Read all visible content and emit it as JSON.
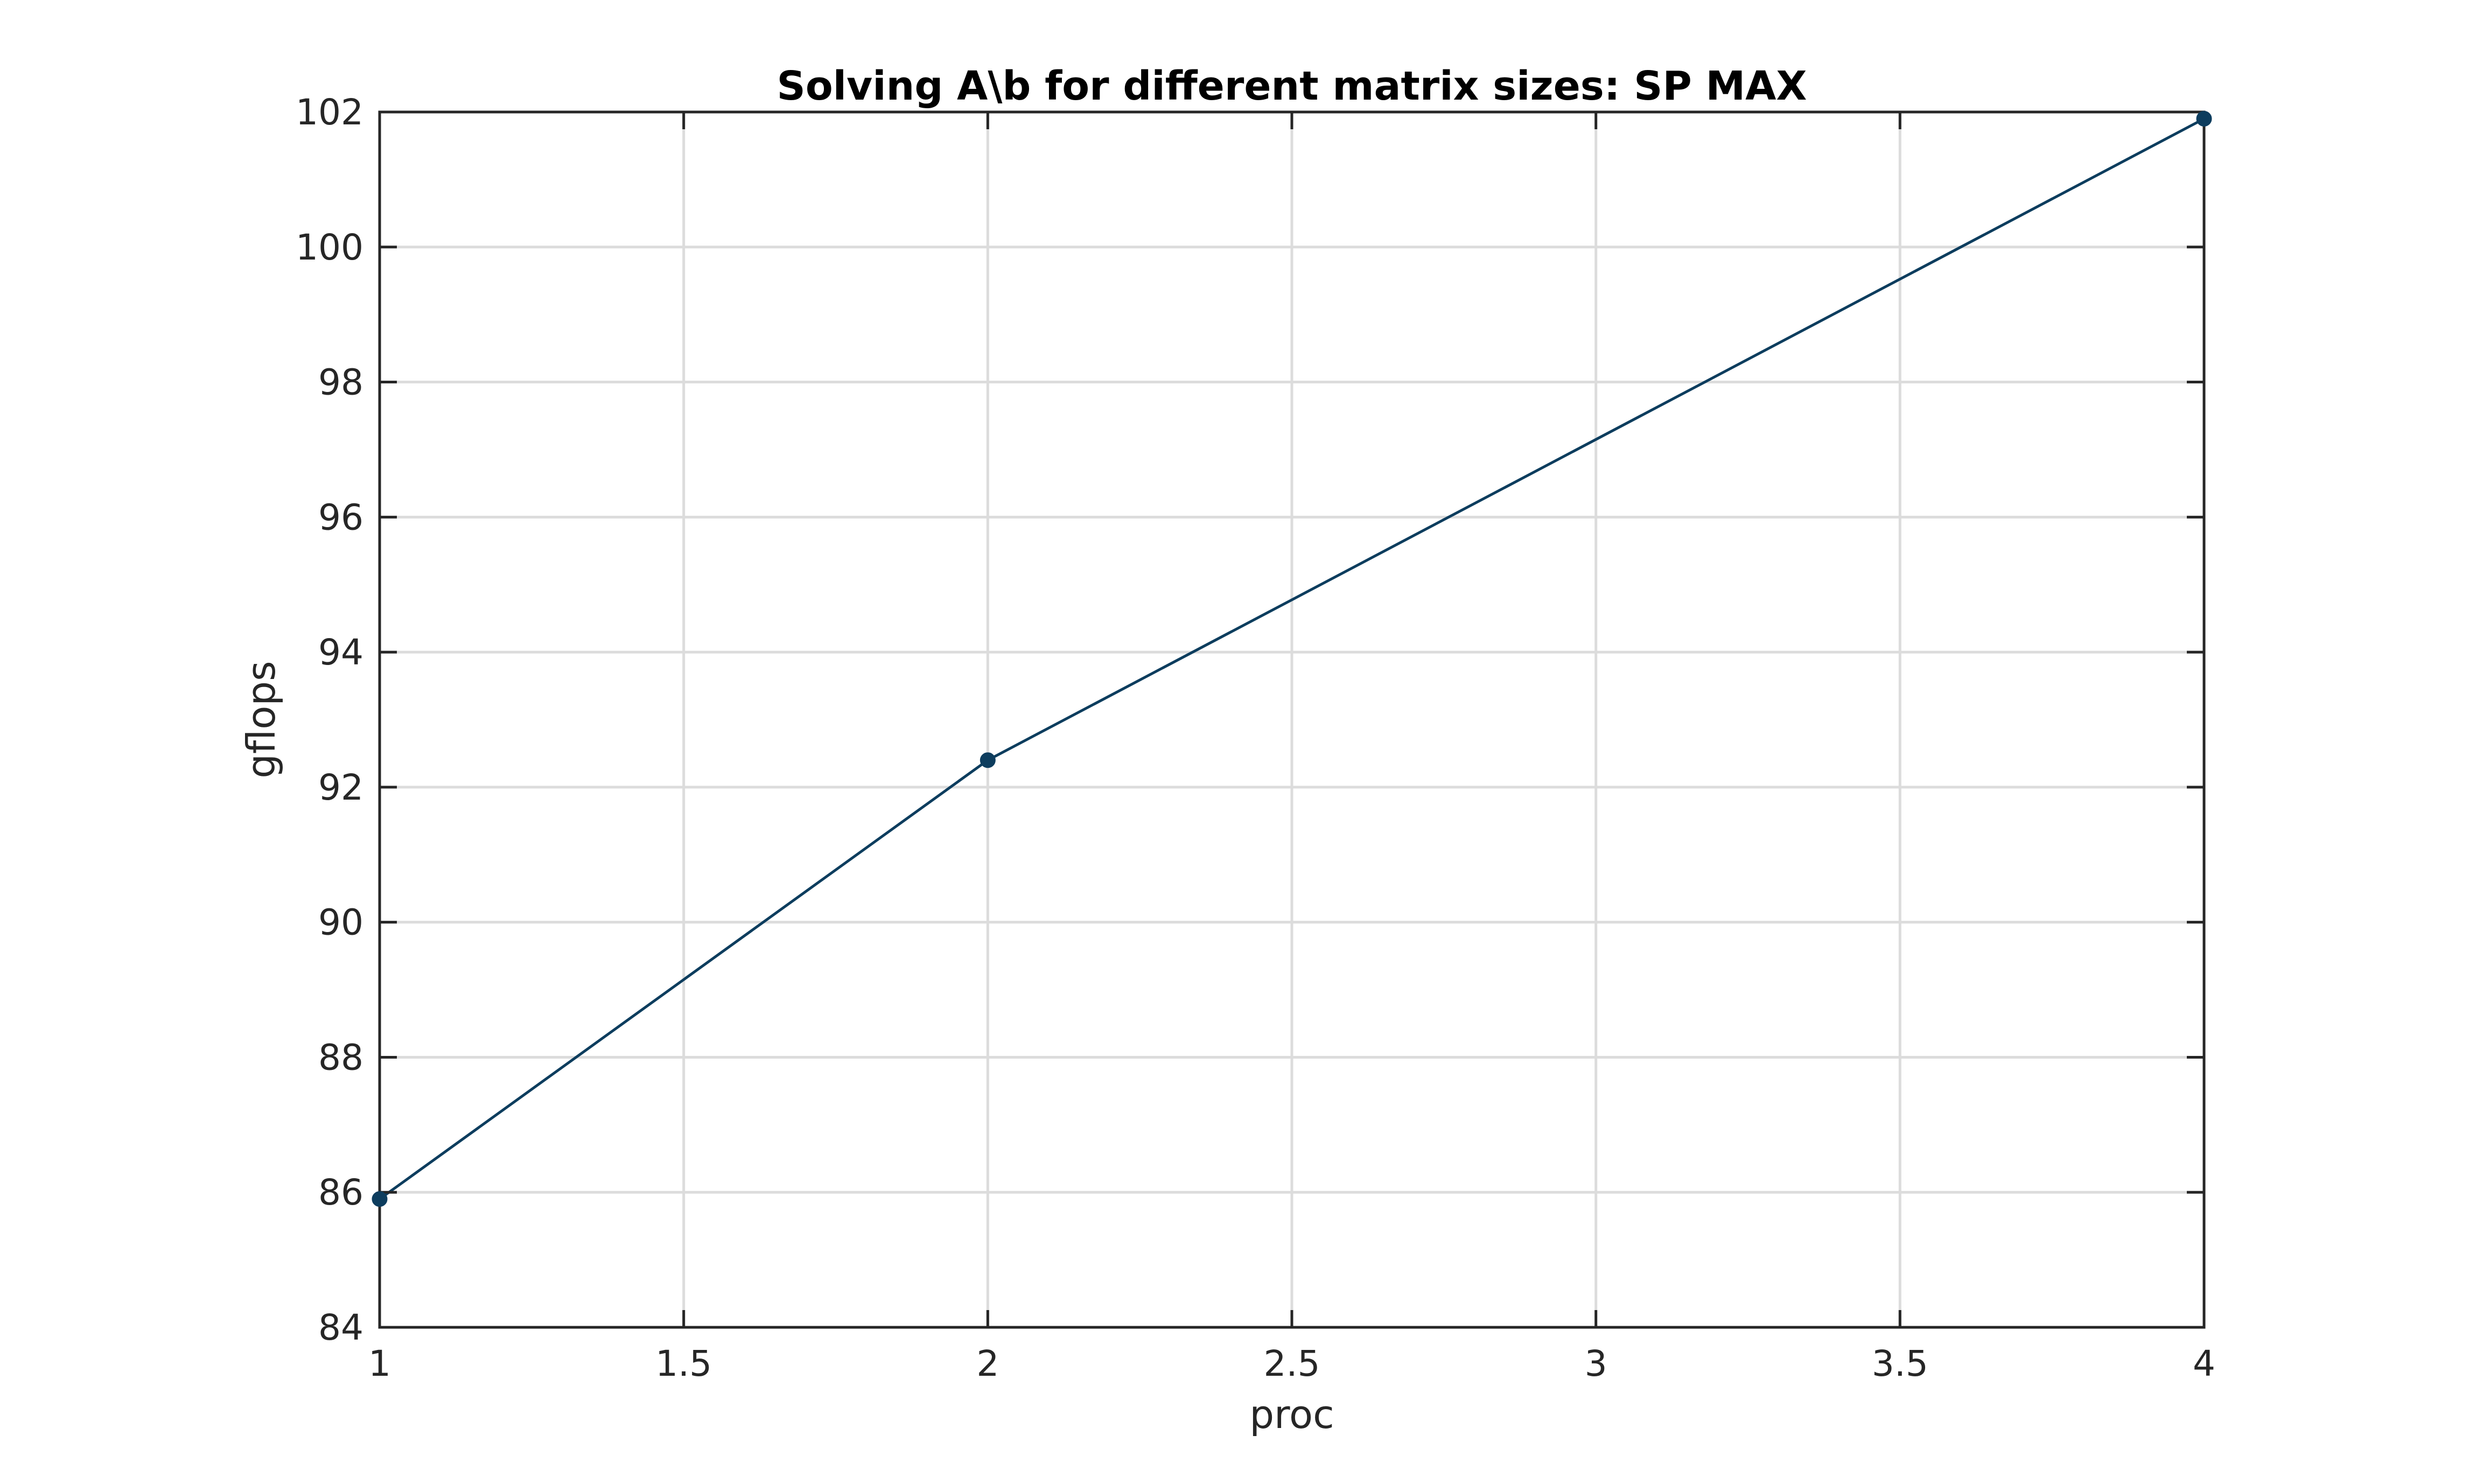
{
  "chart_data": {
    "type": "line",
    "title": "Solving A\\b for different matrix sizes: SP MAX",
    "xlabel": "proc",
    "ylabel": "gflops",
    "xlim": [
      1,
      4
    ],
    "ylim": [
      84,
      102
    ],
    "xticks": [
      1,
      1.5,
      2,
      2.5,
      3,
      3.5,
      4
    ],
    "xtick_labels": [
      "1",
      "1.5",
      "2",
      "2.5",
      "3",
      "3.5",
      "4"
    ],
    "yticks": [
      84,
      86,
      88,
      90,
      92,
      94,
      96,
      98,
      100,
      102
    ],
    "ytick_labels": [
      "84",
      "86",
      "88",
      "90",
      "92",
      "94",
      "96",
      "98",
      "100",
      "102"
    ],
    "grid": true,
    "series": [
      {
        "name": "SP MAX",
        "color": "#0d3d5e",
        "x": [
          1,
          2,
          4
        ],
        "y": [
          85.9,
          92.4,
          101.9
        ]
      }
    ]
  }
}
